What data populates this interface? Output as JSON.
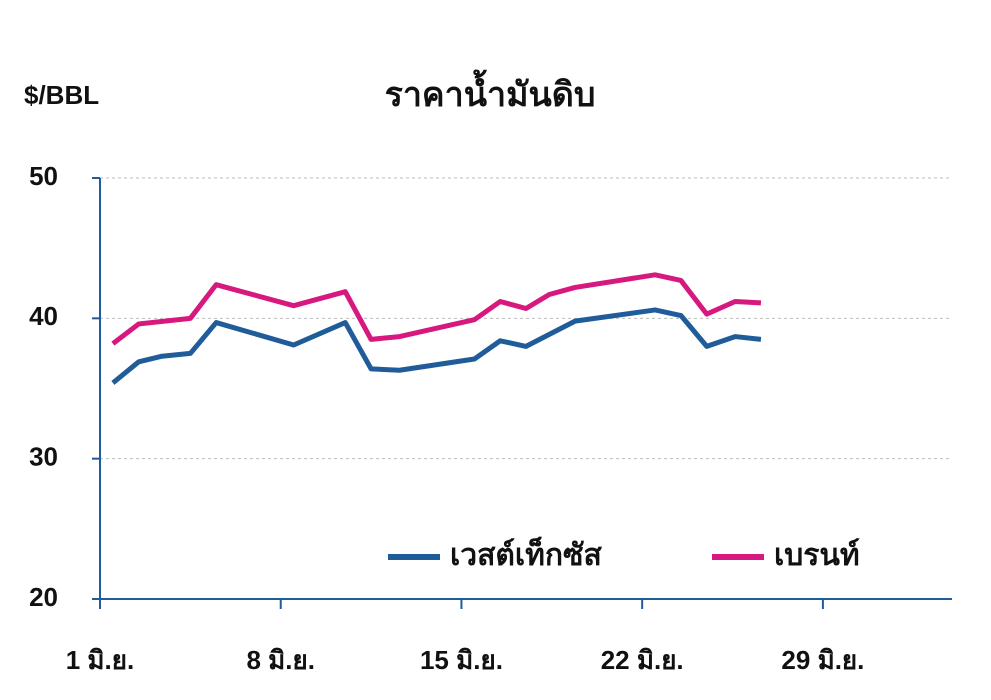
{
  "chart_data": {
    "type": "line",
    "title": "ราคาน้ำมันดิบ",
    "y_label": "$/BBL",
    "xlim": [
      1,
      34
    ],
    "xticks": [
      {
        "value": 1,
        "label": "1 มิ.ย."
      },
      {
        "value": 8,
        "label": "8 มิ.ย."
      },
      {
        "value": 15,
        "label": "15 มิ.ย."
      },
      {
        "value": 22,
        "label": "22 มิ.ย."
      },
      {
        "value": 29,
        "label": "29 มิ.ย."
      }
    ],
    "ylim": [
      20,
      50
    ],
    "yticks": [
      20,
      30,
      40,
      50
    ],
    "grid": true,
    "legend": "bottom-right",
    "series": [
      {
        "name": "เวสต์เท็กซัส",
        "color": "#1f5c99",
        "x": [
          1.5,
          2.5,
          3.4,
          4.5,
          5.5,
          8.5,
          10.5,
          11.5,
          12.6,
          15.5,
          16.5,
          17.5,
          19.4,
          22.5,
          23.5,
          24.5,
          25.6,
          26.6
        ],
        "values": [
          35.4,
          36.9,
          37.3,
          37.5,
          39.7,
          38.1,
          39.7,
          36.4,
          36.3,
          37.1,
          38.4,
          38.0,
          39.8,
          40.6,
          40.2,
          38.0,
          38.7,
          38.5
        ]
      },
      {
        "name": "เบรนท์",
        "color": "#d6187f",
        "x": [
          1.5,
          2.5,
          4.5,
          5.5,
          8.5,
          10.5,
          11.5,
          12.6,
          15.5,
          16.5,
          17.5,
          18.4,
          19.4,
          22.5,
          23.5,
          24.5,
          25.6,
          26.6
        ],
        "values": [
          38.2,
          39.6,
          40.0,
          42.4,
          40.9,
          41.9,
          38.5,
          38.7,
          39.9,
          41.2,
          40.7,
          41.7,
          42.2,
          43.1,
          42.7,
          40.3,
          41.2,
          41.1
        ]
      }
    ]
  }
}
